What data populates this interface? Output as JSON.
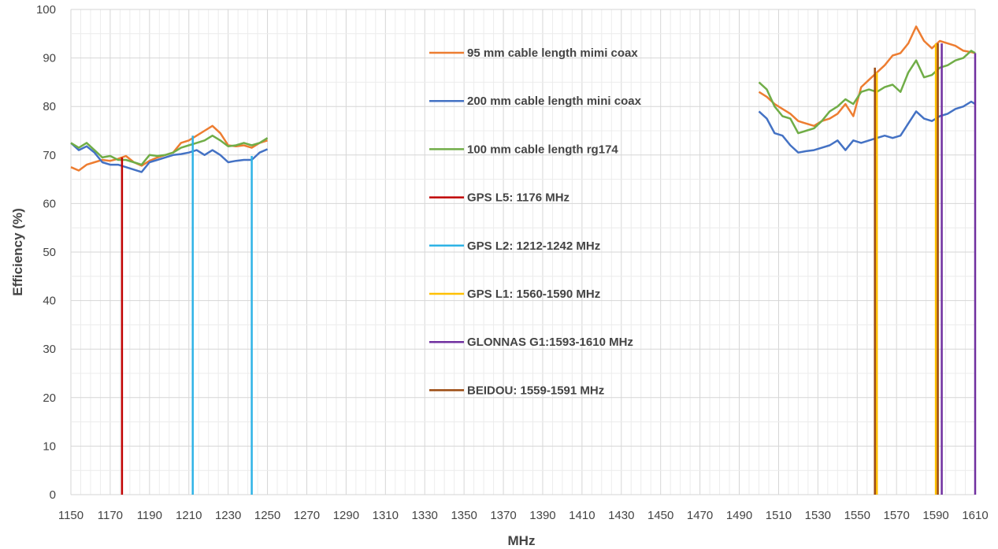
{
  "chart_data": {
    "type": "line",
    "title": "",
    "xlabel": "MHz",
    "ylabel": "Efficiency (%)",
    "xlim": [
      1150,
      1610
    ],
    "ylim": [
      0,
      100
    ],
    "x_ticks": [
      1150,
      1170,
      1190,
      1210,
      1230,
      1250,
      1270,
      1290,
      1310,
      1330,
      1350,
      1370,
      1390,
      1410,
      1430,
      1450,
      1470,
      1490,
      1510,
      1530,
      1550,
      1570,
      1590,
      1610
    ],
    "y_ticks": [
      0,
      10,
      20,
      30,
      40,
      50,
      60,
      70,
      80,
      90,
      100
    ],
    "grid": true,
    "legend_position": "center",
    "series": [
      {
        "name": "95 mm cable length mimi coax",
        "color": "#ed7d31",
        "segments": [
          [
            [
              1150,
              67.5
            ],
            [
              1154,
              66.8
            ],
            [
              1158,
              68.0
            ],
            [
              1162,
              68.5
            ],
            [
              1166,
              69.0
            ],
            [
              1170,
              68.8
            ],
            [
              1174,
              69.2
            ],
            [
              1178,
              69.8
            ],
            [
              1182,
              68.5
            ],
            [
              1186,
              67.8
            ],
            [
              1190,
              68.8
            ],
            [
              1194,
              69.5
            ],
            [
              1198,
              70.0
            ],
            [
              1202,
              70.5
            ],
            [
              1206,
              72.5
            ],
            [
              1210,
              73.0
            ],
            [
              1214,
              74.0
            ],
            [
              1218,
              75.0
            ],
            [
              1222,
              76.0
            ],
            [
              1226,
              74.5
            ],
            [
              1230,
              72.0
            ],
            [
              1234,
              71.8
            ],
            [
              1238,
              72.0
            ],
            [
              1242,
              71.5
            ],
            [
              1246,
              72.5
            ],
            [
              1250,
              73.0
            ]
          ],
          [
            [
              1500,
              83.0
            ],
            [
              1504,
              82.0
            ],
            [
              1508,
              80.5
            ],
            [
              1512,
              79.5
            ],
            [
              1516,
              78.5
            ],
            [
              1520,
              77.0
            ],
            [
              1524,
              76.5
            ],
            [
              1528,
              76.0
            ],
            [
              1532,
              77.0
            ],
            [
              1536,
              77.5
            ],
            [
              1540,
              78.5
            ],
            [
              1544,
              80.5
            ],
            [
              1548,
              78.0
            ],
            [
              1552,
              84.0
            ],
            [
              1556,
              85.5
            ],
            [
              1560,
              87.0
            ],
            [
              1564,
              88.5
            ],
            [
              1568,
              90.5
            ],
            [
              1572,
              91.0
            ],
            [
              1576,
              93.0
            ],
            [
              1580,
              96.5
            ],
            [
              1584,
              93.5
            ],
            [
              1588,
              92.0
            ],
            [
              1592,
              93.5
            ],
            [
              1596,
              93.0
            ],
            [
              1600,
              92.5
            ],
            [
              1604,
              91.5
            ],
            [
              1608,
              91.2
            ],
            [
              1610,
              91.0
            ]
          ]
        ]
      },
      {
        "name": "200 mm cable length mini coax",
        "color": "#4472c4",
        "segments": [
          [
            [
              1150,
              72.5
            ],
            [
              1154,
              71.0
            ],
            [
              1158,
              71.8
            ],
            [
              1162,
              70.5
            ],
            [
              1166,
              68.5
            ],
            [
              1170,
              68.0
            ],
            [
              1174,
              68.0
            ],
            [
              1178,
              67.5
            ],
            [
              1182,
              67.0
            ],
            [
              1186,
              66.5
            ],
            [
              1190,
              68.5
            ],
            [
              1194,
              69.0
            ],
            [
              1198,
              69.5
            ],
            [
              1202,
              70.0
            ],
            [
              1206,
              70.2
            ],
            [
              1210,
              70.5
            ],
            [
              1214,
              71.0
            ],
            [
              1218,
              70.0
            ],
            [
              1222,
              71.0
            ],
            [
              1226,
              70.0
            ],
            [
              1230,
              68.5
            ],
            [
              1234,
              68.8
            ],
            [
              1238,
              69.0
            ],
            [
              1242,
              69.0
            ],
            [
              1246,
              70.5
            ],
            [
              1250,
              71.2
            ]
          ],
          [
            [
              1500,
              79.0
            ],
            [
              1504,
              77.5
            ],
            [
              1508,
              74.5
            ],
            [
              1512,
              74.0
            ],
            [
              1516,
              72.0
            ],
            [
              1520,
              70.5
            ],
            [
              1524,
              70.8
            ],
            [
              1528,
              71.0
            ],
            [
              1532,
              71.5
            ],
            [
              1536,
              72.0
            ],
            [
              1540,
              73.0
            ],
            [
              1544,
              71.0
            ],
            [
              1548,
              73.0
            ],
            [
              1552,
              72.5
            ],
            [
              1556,
              73.0
            ],
            [
              1560,
              73.5
            ],
            [
              1564,
              74.0
            ],
            [
              1568,
              73.5
            ],
            [
              1572,
              74.0
            ],
            [
              1576,
              76.5
            ],
            [
              1580,
              79.0
            ],
            [
              1584,
              77.5
            ],
            [
              1588,
              77.0
            ],
            [
              1592,
              78.0
            ],
            [
              1596,
              78.5
            ],
            [
              1600,
              79.5
            ],
            [
              1604,
              80.0
            ],
            [
              1608,
              81.0
            ],
            [
              1610,
              80.5
            ]
          ]
        ]
      },
      {
        "name": "100 mm cable length rg174",
        "color": "#70ad47",
        "segments": [
          [
            [
              1150,
              72.5
            ],
            [
              1154,
              71.5
            ],
            [
              1158,
              72.5
            ],
            [
              1162,
              71.0
            ],
            [
              1166,
              69.5
            ],
            [
              1170,
              69.8
            ],
            [
              1174,
              69.0
            ],
            [
              1178,
              69.0
            ],
            [
              1182,
              68.5
            ],
            [
              1186,
              68.0
            ],
            [
              1190,
              70.0
            ],
            [
              1194,
              69.8
            ],
            [
              1198,
              70.0
            ],
            [
              1202,
              70.5
            ],
            [
              1206,
              71.5
            ],
            [
              1210,
              72.0
            ],
            [
              1214,
              72.5
            ],
            [
              1218,
              73.0
            ],
            [
              1222,
              74.0
            ],
            [
              1226,
              73.0
            ],
            [
              1230,
              71.8
            ],
            [
              1234,
              72.0
            ],
            [
              1238,
              72.5
            ],
            [
              1242,
              72.0
            ],
            [
              1246,
              72.5
            ],
            [
              1250,
              73.5
            ]
          ],
          [
            [
              1500,
              85.0
            ],
            [
              1504,
              83.5
            ],
            [
              1508,
              80.0
            ],
            [
              1512,
              78.0
            ],
            [
              1516,
              77.5
            ],
            [
              1520,
              74.5
            ],
            [
              1524,
              75.0
            ],
            [
              1528,
              75.5
            ],
            [
              1532,
              77.0
            ],
            [
              1536,
              79.0
            ],
            [
              1540,
              80.0
            ],
            [
              1544,
              81.5
            ],
            [
              1548,
              80.5
            ],
            [
              1552,
              83.0
            ],
            [
              1556,
              83.5
            ],
            [
              1560,
              83.0
            ],
            [
              1564,
              84.0
            ],
            [
              1568,
              84.5
            ],
            [
              1572,
              83.0
            ],
            [
              1576,
              87.0
            ],
            [
              1580,
              89.5
            ],
            [
              1584,
              86.0
            ],
            [
              1588,
              86.5
            ],
            [
              1592,
              88.0
            ],
            [
              1596,
              88.5
            ],
            [
              1600,
              89.5
            ],
            [
              1604,
              90.0
            ],
            [
              1608,
              91.5
            ],
            [
              1610,
              91.0
            ]
          ]
        ]
      },
      {
        "name": "GPS L5: 1176 MHz",
        "color": "#c00000",
        "segments": [
          [
            [
              1176,
              0
            ],
            [
              1176,
              69.5
            ]
          ]
        ]
      },
      {
        "name": "GPS L2: 1212-1242 MHz",
        "color": "#2eb3e6",
        "segments": [
          [
            [
              1212,
              0
            ],
            [
              1212,
              74.0
            ]
          ],
          [
            [
              1242,
              0
            ],
            [
              1242,
              69.8
            ]
          ]
        ]
      },
      {
        "name": "GPS L1: 1560-1590 MHz",
        "color": "#ffc000",
        "segments": [
          [
            [
              1560,
              0
            ],
            [
              1560,
              87.0
            ]
          ],
          [
            [
              1590,
              0
            ],
            [
              1590,
              93.0
            ]
          ]
        ]
      },
      {
        "name": "GLONNAS G1:1593-1610 MHz",
        "color": "#7030a0",
        "segments": [
          [
            [
              1593,
              0
            ],
            [
              1593,
              93.0
            ]
          ],
          [
            [
              1610,
              0
            ],
            [
              1610,
              91.0
            ]
          ]
        ]
      },
      {
        "name": "BEIDOU: 1559-1591 MHz",
        "color": "#9c4a10",
        "segments": [
          [
            [
              1559,
              0
            ],
            [
              1559,
              88.0
            ]
          ],
          [
            [
              1591,
              0
            ],
            [
              1591,
              93.0
            ]
          ]
        ]
      }
    ]
  }
}
